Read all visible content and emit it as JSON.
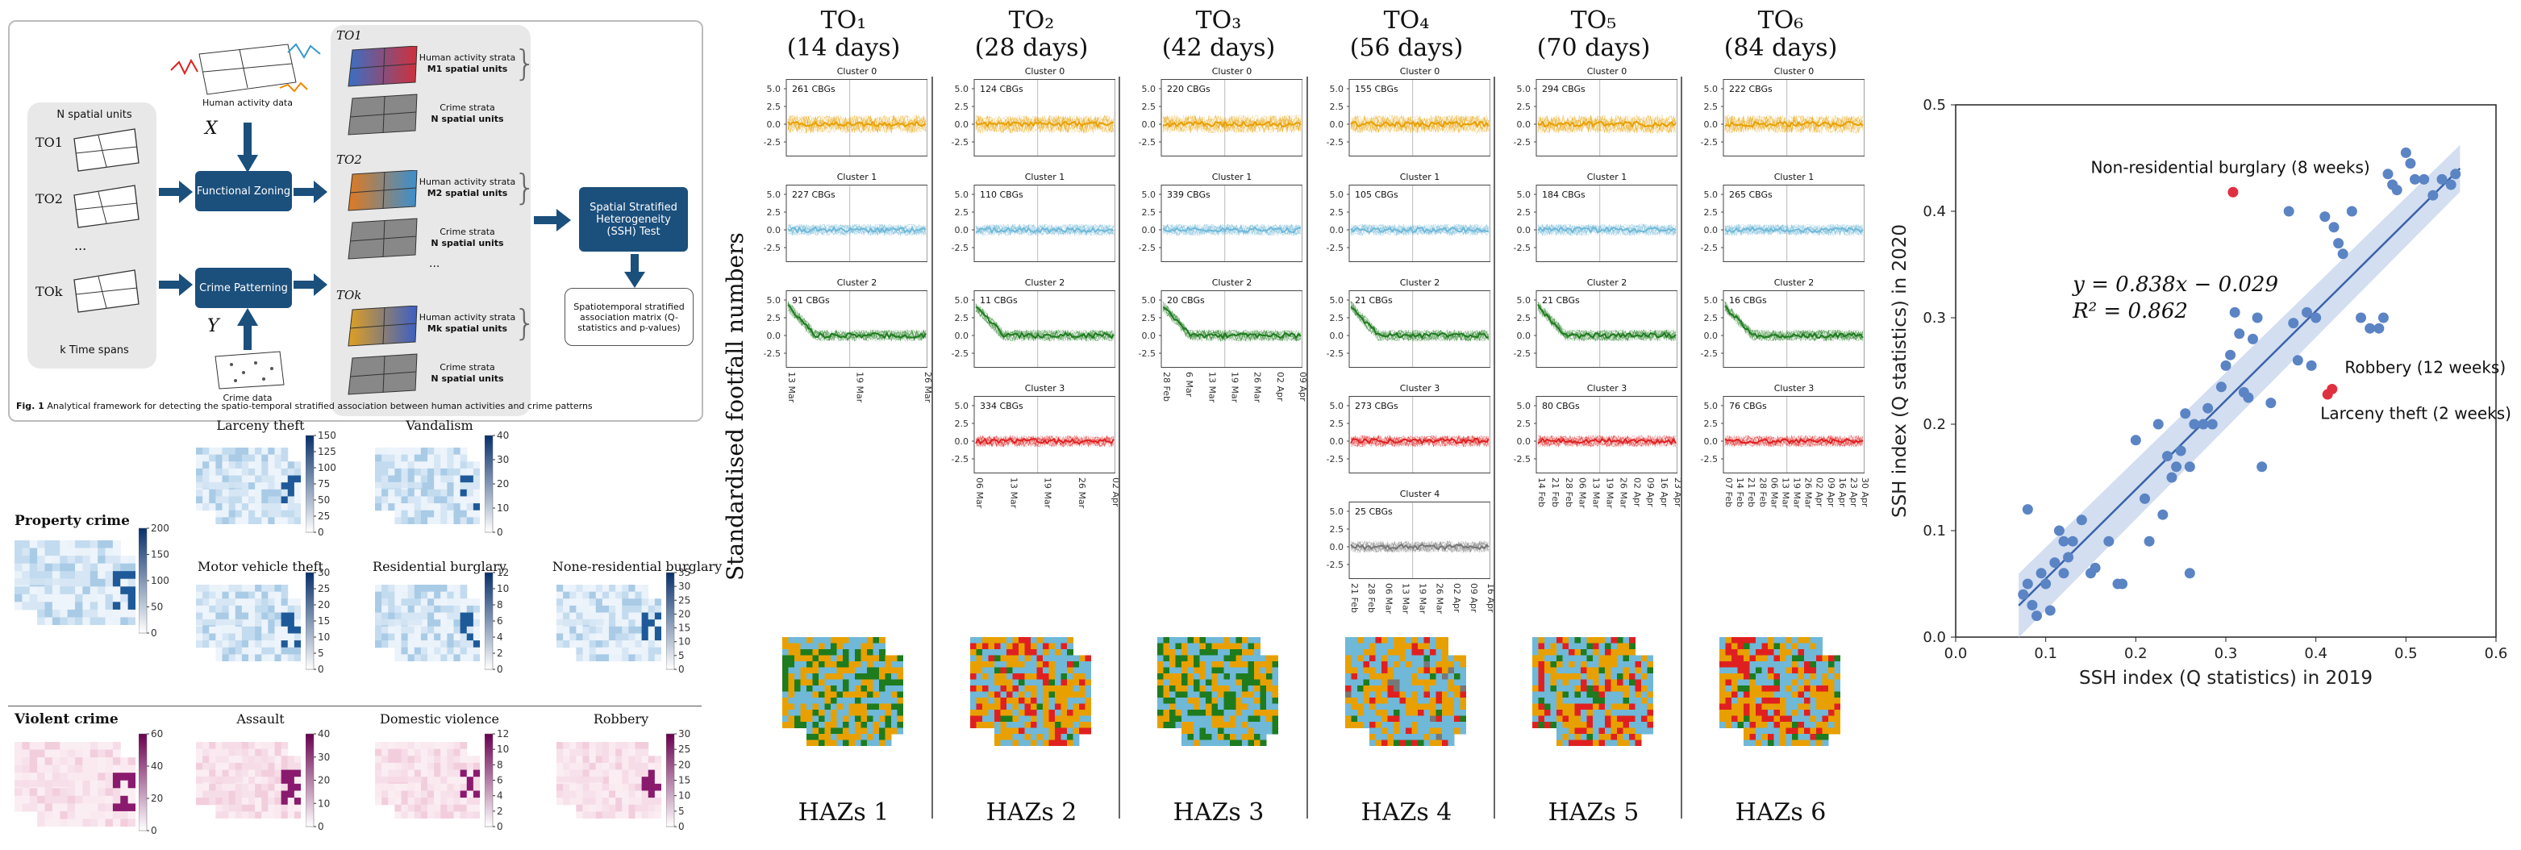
{
  "framework": {
    "inputs": {
      "spatial_units": "N spatial units",
      "time_spans": "k Time spans",
      "to_labels": [
        "TO1",
        "TO2",
        "...",
        "TOk"
      ]
    },
    "human_data": "Human activity data",
    "crime_data": "Crime data",
    "x_label": "X",
    "y_label": "Y",
    "functional_zoning": "Functional Zoning",
    "crime_patterning": "Crime Patterning",
    "ssh_test": "Spatial Stratified Heterogeneity (SSH) Test",
    "matrix": "Spatiotemporal stratified association matrix (Q-statistics and p-values)",
    "strata": [
      {
        "to": "TO1",
        "ha": "Human activity strata",
        "ha_units": "M1 spatial units",
        "cr": "Crime strata",
        "cr_units": "N spatial units"
      },
      {
        "to": "TO2",
        "ha": "Human activity strata",
        "ha_units": "M2 spatial units",
        "cr": "Crime strata",
        "cr_units": "N spatial units"
      },
      {
        "to": "TOk",
        "ha": "Human activity strata",
        "ha_units": "Mk spatial units",
        "cr": "Crime strata",
        "cr_units": "N spatial units"
      }
    ],
    "ellipsis": "...",
    "caption_bold": "Fig. 1",
    "caption": "Analytical framework for detecting the spatio-temporal stratified association between human activities and crime patterns"
  },
  "crime_maps": {
    "property_label": "Property crime",
    "violent_label": "Violent crime",
    "property_ticks": [
      "200",
      "150",
      "100",
      "50",
      "0"
    ],
    "violent_ticks": [
      "60",
      "40",
      "20",
      "0"
    ],
    "property": [
      {
        "title": "Larceny theft",
        "ticks": [
          "150",
          "125",
          "100",
          "75",
          "50",
          "25",
          "0"
        ]
      },
      {
        "title": "Vandalism",
        "ticks": [
          "40",
          "30",
          "20",
          "10",
          "0"
        ]
      },
      {
        "title": "Motor vehicle theft",
        "ticks": [
          "30",
          "25",
          "20",
          "15",
          "10",
          "5",
          "0"
        ]
      },
      {
        "title": "Residential burglary",
        "ticks": [
          "12",
          "10",
          "8",
          "6",
          "4",
          "2",
          "0"
        ]
      },
      {
        "title": "None-residential burglary",
        "ticks": [
          "35",
          "30",
          "25",
          "20",
          "15",
          "10",
          "5",
          "0"
        ]
      }
    ],
    "violent": [
      {
        "title": "Assault",
        "ticks": [
          "40",
          "30",
          "20",
          "10",
          "0"
        ]
      },
      {
        "title": "Domestic violence",
        "ticks": [
          "12",
          "10",
          "8",
          "6",
          "4",
          "2",
          "0"
        ]
      },
      {
        "title": "Robbery",
        "ticks": [
          "30",
          "25",
          "20",
          "15",
          "10",
          "5",
          "0"
        ]
      }
    ]
  },
  "timeseries": {
    "ylabel": "Standardised footfall numbers",
    "yticks": [
      "5.0",
      "2.5",
      "0.0",
      "-2.5"
    ],
    "columns": [
      {
        "title": "TO₁",
        "days": "(14 days)",
        "haz": "HAZs 1",
        "clusters": [
          {
            "name": "Cluster 0",
            "cbgs": "261 CBGs",
            "color": "#e8a000"
          },
          {
            "name": "Cluster 1",
            "cbgs": "227 CBGs",
            "color": "#6fb8d8"
          },
          {
            "name": "Cluster 2",
            "cbgs": "91 CBGs",
            "color": "#1e7b1e"
          }
        ],
        "xticks": [
          "13 Mar",
          "19 Mar",
          "26 Mar"
        ]
      },
      {
        "title": "TO₂",
        "days": "(28 days)",
        "haz": "HAZs 2",
        "clusters": [
          {
            "name": "Cluster 0",
            "cbgs": "124 CBGs",
            "color": "#e8a000"
          },
          {
            "name": "Cluster 1",
            "cbgs": "110 CBGs",
            "color": "#6fb8d8"
          },
          {
            "name": "Cluster 2",
            "cbgs": "11 CBGs",
            "color": "#1e7b1e"
          },
          {
            "name": "Cluster 3",
            "cbgs": "334 CBGs",
            "color": "#e02020"
          }
        ],
        "xticks": [
          "06 Mar",
          "13 Mar",
          "19 Mar",
          "26 Mar",
          "02 Apr"
        ]
      },
      {
        "title": "TO₃",
        "days": "(42 days)",
        "haz": "HAZs 3",
        "clusters": [
          {
            "name": "Cluster 0",
            "cbgs": "220 CBGs",
            "color": "#e8a000"
          },
          {
            "name": "Cluster 1",
            "cbgs": "339 CBGs",
            "color": "#6fb8d8"
          },
          {
            "name": "Cluster 2",
            "cbgs": "20 CBGs",
            "color": "#1e7b1e"
          }
        ],
        "xticks": [
          "28 Feb",
          "6 Mar",
          "13 Mar",
          "19 Mar",
          "26 Mar",
          "02 Apr",
          "09 Apr"
        ]
      },
      {
        "title": "TO₄",
        "days": "(56 days)",
        "haz": "HAZs 4",
        "clusters": [
          {
            "name": "Cluster 0",
            "cbgs": "155 CBGs",
            "color": "#e8a000"
          },
          {
            "name": "Cluster 1",
            "cbgs": "105 CBGs",
            "color": "#6fb8d8"
          },
          {
            "name": "Cluster 2",
            "cbgs": "21 CBGs",
            "color": "#1e7b1e"
          },
          {
            "name": "Cluster 3",
            "cbgs": "273 CBGs",
            "color": "#e02020"
          },
          {
            "name": "Cluster 4",
            "cbgs": "25 CBGs",
            "color": "#777777"
          }
        ],
        "xticks": [
          "21 Feb",
          "28 Feb",
          "06 Mar",
          "13 Mar",
          "19 Mar",
          "26 Mar",
          "02 Apr",
          "09 Apr",
          "16 Apr"
        ]
      },
      {
        "title": "TO₅",
        "days": "(70 days)",
        "haz": "HAZs 5",
        "clusters": [
          {
            "name": "Cluster 0",
            "cbgs": "294 CBGs",
            "color": "#e8a000"
          },
          {
            "name": "Cluster 1",
            "cbgs": "184 CBGs",
            "color": "#6fb8d8"
          },
          {
            "name": "Cluster 2",
            "cbgs": "21 CBGs",
            "color": "#1e7b1e"
          },
          {
            "name": "Cluster 3",
            "cbgs": "80 CBGs",
            "color": "#e02020"
          }
        ],
        "xticks": [
          "14 Feb",
          "21 Feb",
          "28 Feb",
          "06 Mar",
          "13 Mar",
          "19 Mar",
          "26 Mar",
          "02 Apr",
          "09 Apr",
          "16 Apr",
          "23 Apr"
        ]
      },
      {
        "title": "TO₆",
        "days": "(84 days)",
        "haz": "HAZs 6",
        "clusters": [
          {
            "name": "Cluster 0",
            "cbgs": "222 CBGs",
            "color": "#e8a000"
          },
          {
            "name": "Cluster 1",
            "cbgs": "265 CBGs",
            "color": "#6fb8d8"
          },
          {
            "name": "Cluster 2",
            "cbgs": "16 CBGs",
            "color": "#1e7b1e"
          },
          {
            "name": "Cluster 3",
            "cbgs": "76 CBGs",
            "color": "#e02020"
          }
        ],
        "xticks": [
          "07 Feb",
          "14 Feb",
          "21 Feb",
          "28 Feb",
          "06 Mar",
          "13 Mar",
          "19 Mar",
          "26 Mar",
          "02 Apr",
          "09 Apr",
          "16 Apr",
          "23 Apr",
          "30 Apr"
        ]
      }
    ]
  },
  "chart_data": {
    "type": "scatter",
    "xlabel": "SSH index (Q statistics) in 2019",
    "ylabel": "SSH index (Q statistics) in 2020",
    "xlim": [
      0.0,
      0.6
    ],
    "ylim": [
      0.0,
      0.5
    ],
    "xticks": [
      "0.0",
      "0.1",
      "0.2",
      "0.3",
      "0.4",
      "0.5",
      "0.6"
    ],
    "yticks": [
      "0.0",
      "0.1",
      "0.2",
      "0.3",
      "0.4",
      "0.5"
    ],
    "equation": "y = 0.838x − 0.029",
    "r2": "R² = 0.862",
    "fit": {
      "slope": 0.838,
      "intercept": -0.029
    },
    "points": [
      [
        0.075,
        0.04
      ],
      [
        0.08,
        0.05
      ],
      [
        0.085,
        0.03
      ],
      [
        0.09,
        0.02
      ],
      [
        0.095,
        0.06
      ],
      [
        0.1,
        0.05
      ],
      [
        0.105,
        0.025
      ],
      [
        0.11,
        0.07
      ],
      [
        0.115,
        0.1
      ],
      [
        0.12,
        0.06
      ],
      [
        0.125,
        0.075
      ],
      [
        0.13,
        0.09
      ],
      [
        0.14,
        0.11
      ],
      [
        0.15,
        0.06
      ],
      [
        0.155,
        0.065
      ],
      [
        0.17,
        0.09
      ],
      [
        0.185,
        0.05
      ],
      [
        0.2,
        0.185
      ],
      [
        0.21,
        0.13
      ],
      [
        0.215,
        0.09
      ],
      [
        0.225,
        0.2
      ],
      [
        0.23,
        0.115
      ],
      [
        0.235,
        0.17
      ],
      [
        0.24,
        0.15
      ],
      [
        0.245,
        0.16
      ],
      [
        0.25,
        0.175
      ],
      [
        0.255,
        0.21
      ],
      [
        0.26,
        0.16
      ],
      [
        0.265,
        0.2
      ],
      [
        0.275,
        0.2
      ],
      [
        0.28,
        0.215
      ],
      [
        0.285,
        0.2
      ],
      [
        0.295,
        0.235
      ],
      [
        0.3,
        0.255
      ],
      [
        0.305,
        0.265
      ],
      [
        0.31,
        0.305
      ],
      [
        0.315,
        0.285
      ],
      [
        0.32,
        0.23
      ],
      [
        0.325,
        0.225
      ],
      [
        0.33,
        0.28
      ],
      [
        0.335,
        0.3
      ],
      [
        0.34,
        0.16
      ],
      [
        0.35,
        0.22
      ],
      [
        0.37,
        0.4
      ],
      [
        0.375,
        0.295
      ],
      [
        0.38,
        0.26
      ],
      [
        0.39,
        0.305
      ],
      [
        0.395,
        0.255
      ],
      [
        0.4,
        0.3
      ],
      [
        0.41,
        0.395
      ],
      [
        0.42,
        0.385
      ],
      [
        0.425,
        0.37
      ],
      [
        0.43,
        0.36
      ],
      [
        0.44,
        0.4
      ],
      [
        0.45,
        0.3
      ],
      [
        0.46,
        0.29
      ],
      [
        0.47,
        0.29
      ],
      [
        0.475,
        0.3
      ],
      [
        0.48,
        0.435
      ],
      [
        0.485,
        0.425
      ],
      [
        0.49,
        0.42
      ],
      [
        0.5,
        0.455
      ],
      [
        0.505,
        0.445
      ],
      [
        0.51,
        0.43
      ],
      [
        0.52,
        0.43
      ],
      [
        0.53,
        0.415
      ],
      [
        0.54,
        0.43
      ],
      [
        0.55,
        0.425
      ],
      [
        0.555,
        0.435
      ],
      [
        0.08,
        0.12
      ],
      [
        0.12,
        0.09
      ],
      [
        0.18,
        0.05
      ],
      [
        0.26,
        0.06
      ]
    ],
    "highlights": [
      {
        "label": "Non-residential burglary (8 weeks)",
        "x": 0.308,
        "y": 0.418
      },
      {
        "label": "Robbery (12 weeks)",
        "x": 0.418,
        "y": 0.233
      },
      {
        "label": "Larceny theft (2 weeks)",
        "x": 0.413,
        "y": 0.228
      }
    ],
    "colors": {
      "points": "#5b84c4",
      "highlight": "#e03040",
      "fit": "#3a63a8",
      "band": "#c8d6ee"
    }
  }
}
